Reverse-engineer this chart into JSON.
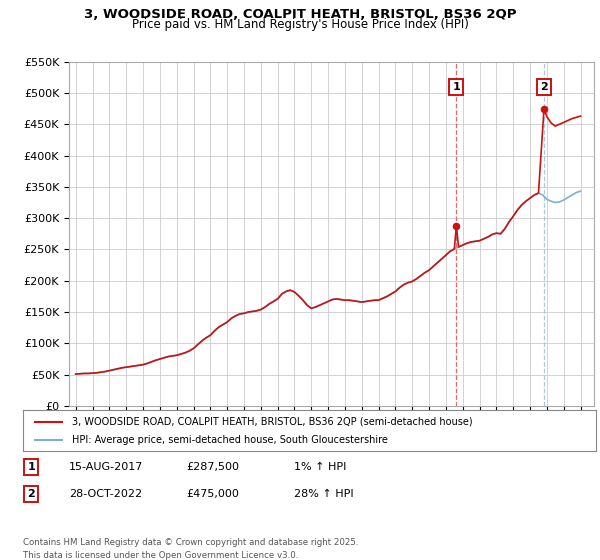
{
  "title_line1": "3, WOODSIDE ROAD, COALPIT HEATH, BRISTOL, BS36 2QP",
  "title_line2": "Price paid vs. HM Land Registry's House Price Index (HPI)",
  "ylim": [
    0,
    550000
  ],
  "yticks": [
    0,
    50000,
    100000,
    150000,
    200000,
    250000,
    300000,
    350000,
    400000,
    450000,
    500000,
    550000
  ],
  "ytick_labels": [
    "£0",
    "£50K",
    "£100K",
    "£150K",
    "£200K",
    "£250K",
    "£300K",
    "£350K",
    "£400K",
    "£450K",
    "£500K",
    "£550K"
  ],
  "xlim_start": 1994.6,
  "xlim_end": 2025.8,
  "xticks": [
    1995,
    1996,
    1997,
    1998,
    1999,
    2000,
    2001,
    2002,
    2003,
    2004,
    2005,
    2006,
    2007,
    2008,
    2009,
    2010,
    2011,
    2012,
    2013,
    2014,
    2015,
    2016,
    2017,
    2018,
    2019,
    2020,
    2021,
    2022,
    2023,
    2024,
    2025
  ],
  "hpi_color": "#7bafd4",
  "price_color": "#cc1111",
  "vline1_color": "#dd4444",
  "vline2_color": "#99bbdd",
  "grid_color": "#cccccc",
  "bg_color": "#ffffff",
  "sale1_x": 2017.62,
  "sale1_y": 287500,
  "sale2_x": 2022.83,
  "sale2_y": 475000,
  "legend_label1": "3, WOODSIDE ROAD, COALPIT HEATH, BRISTOL, BS36 2QP (semi-detached house)",
  "legend_label2": "HPI: Average price, semi-detached house, South Gloucestershire",
  "table_row1": [
    "1",
    "15-AUG-2017",
    "£287,500",
    "1% ↑ HPI"
  ],
  "table_row2": [
    "2",
    "28-OCT-2022",
    "£475,000",
    "28% ↑ HPI"
  ],
  "footer": "Contains HM Land Registry data © Crown copyright and database right 2025.\nThis data is licensed under the Open Government Licence v3.0.",
  "hpi_data": [
    [
      1995.0,
      51000
    ],
    [
      1995.25,
      51500
    ],
    [
      1995.5,
      52000
    ],
    [
      1995.75,
      52000
    ],
    [
      1996.0,
      52500
    ],
    [
      1996.25,
      53000
    ],
    [
      1996.5,
      54000
    ],
    [
      1996.75,
      55000
    ],
    [
      1997.0,
      56500
    ],
    [
      1997.25,
      58000
    ],
    [
      1997.5,
      59500
    ],
    [
      1997.75,
      61000
    ],
    [
      1998.0,
      62000
    ],
    [
      1998.25,
      63000
    ],
    [
      1998.5,
      64000
    ],
    [
      1998.75,
      65000
    ],
    [
      1999.0,
      66000
    ],
    [
      1999.25,
      68000
    ],
    [
      1999.5,
      70500
    ],
    [
      1999.75,
      73000
    ],
    [
      2000.0,
      75000
    ],
    [
      2000.25,
      77000
    ],
    [
      2000.5,
      79000
    ],
    [
      2000.75,
      80000
    ],
    [
      2001.0,
      81000
    ],
    [
      2001.25,
      83000
    ],
    [
      2001.5,
      85000
    ],
    [
      2001.75,
      88000
    ],
    [
      2002.0,
      92000
    ],
    [
      2002.25,
      98000
    ],
    [
      2002.5,
      104000
    ],
    [
      2002.75,
      109000
    ],
    [
      2003.0,
      113000
    ],
    [
      2003.25,
      120000
    ],
    [
      2003.5,
      126000
    ],
    [
      2003.75,
      130000
    ],
    [
      2004.0,
      134000
    ],
    [
      2004.25,
      140000
    ],
    [
      2004.5,
      144000
    ],
    [
      2004.75,
      147000
    ],
    [
      2005.0,
      148000
    ],
    [
      2005.25,
      150000
    ],
    [
      2005.5,
      151000
    ],
    [
      2005.75,
      152000
    ],
    [
      2006.0,
      154000
    ],
    [
      2006.25,
      158000
    ],
    [
      2006.5,
      163000
    ],
    [
      2006.75,
      167000
    ],
    [
      2007.0,
      171000
    ],
    [
      2007.25,
      179000
    ],
    [
      2007.5,
      183000
    ],
    [
      2007.75,
      185000
    ],
    [
      2008.0,
      182000
    ],
    [
      2008.25,
      176000
    ],
    [
      2008.5,
      169000
    ],
    [
      2008.75,
      161000
    ],
    [
      2009.0,
      156000
    ],
    [
      2009.25,
      158000
    ],
    [
      2009.5,
      161000
    ],
    [
      2009.75,
      164000
    ],
    [
      2010.0,
      167000
    ],
    [
      2010.25,
      170000
    ],
    [
      2010.5,
      171000
    ],
    [
      2010.75,
      170000
    ],
    [
      2011.0,
      169000
    ],
    [
      2011.25,
      169000
    ],
    [
      2011.5,
      168000
    ],
    [
      2011.75,
      167000
    ],
    [
      2012.0,
      166000
    ],
    [
      2012.25,
      167000
    ],
    [
      2012.5,
      168000
    ],
    [
      2012.75,
      169000
    ],
    [
      2013.0,
      169000
    ],
    [
      2013.25,
      172000
    ],
    [
      2013.5,
      175000
    ],
    [
      2013.75,
      179000
    ],
    [
      2014.0,
      183000
    ],
    [
      2014.25,
      189000
    ],
    [
      2014.5,
      194000
    ],
    [
      2014.75,
      197000
    ],
    [
      2015.0,
      199000
    ],
    [
      2015.25,
      203000
    ],
    [
      2015.5,
      208000
    ],
    [
      2015.75,
      213000
    ],
    [
      2016.0,
      217000
    ],
    [
      2016.25,
      223000
    ],
    [
      2016.5,
      229000
    ],
    [
      2016.75,
      235000
    ],
    [
      2017.0,
      241000
    ],
    [
      2017.25,
      247000
    ],
    [
      2017.5,
      251000
    ],
    [
      2017.75,
      254000
    ],
    [
      2018.0,
      257000
    ],
    [
      2018.25,
      260000
    ],
    [
      2018.5,
      262000
    ],
    [
      2018.75,
      263000
    ],
    [
      2019.0,
      264000
    ],
    [
      2019.25,
      267000
    ],
    [
      2019.5,
      270000
    ],
    [
      2019.75,
      274000
    ],
    [
      2020.0,
      276000
    ],
    [
      2020.25,
      275000
    ],
    [
      2020.5,
      283000
    ],
    [
      2020.75,
      294000
    ],
    [
      2021.0,
      303000
    ],
    [
      2021.25,
      313000
    ],
    [
      2021.5,
      321000
    ],
    [
      2021.75,
      327000
    ],
    [
      2022.0,
      332000
    ],
    [
      2022.25,
      337000
    ],
    [
      2022.5,
      340000
    ],
    [
      2022.75,
      337000
    ],
    [
      2023.0,
      330000
    ],
    [
      2023.25,
      327000
    ],
    [
      2023.5,
      325000
    ],
    [
      2023.75,
      326000
    ],
    [
      2024.0,
      329000
    ],
    [
      2024.25,
      333000
    ],
    [
      2024.5,
      337000
    ],
    [
      2024.75,
      341000
    ],
    [
      2025.0,
      343000
    ]
  ],
  "price_data": [
    [
      1995.0,
      51000
    ],
    [
      1995.25,
      51500
    ],
    [
      1995.5,
      52000
    ],
    [
      1995.75,
      52000
    ],
    [
      1996.0,
      52500
    ],
    [
      1996.25,
      53000
    ],
    [
      1996.5,
      54000
    ],
    [
      1996.75,
      55000
    ],
    [
      1997.0,
      56500
    ],
    [
      1997.25,
      58000
    ],
    [
      1997.5,
      59500
    ],
    [
      1997.75,
      61000
    ],
    [
      1998.0,
      62000
    ],
    [
      1998.25,
      63000
    ],
    [
      1998.5,
      64000
    ],
    [
      1998.75,
      65000
    ],
    [
      1999.0,
      66000
    ],
    [
      1999.25,
      68000
    ],
    [
      1999.5,
      70500
    ],
    [
      1999.75,
      73000
    ],
    [
      2000.0,
      75000
    ],
    [
      2000.25,
      77000
    ],
    [
      2000.5,
      79000
    ],
    [
      2000.75,
      80000
    ],
    [
      2001.0,
      81000
    ],
    [
      2001.25,
      83000
    ],
    [
      2001.5,
      85000
    ],
    [
      2001.75,
      88000
    ],
    [
      2002.0,
      92000
    ],
    [
      2002.25,
      98000
    ],
    [
      2002.5,
      104000
    ],
    [
      2002.75,
      109000
    ],
    [
      2003.0,
      113000
    ],
    [
      2003.25,
      120000
    ],
    [
      2003.5,
      126000
    ],
    [
      2003.75,
      130000
    ],
    [
      2004.0,
      134000
    ],
    [
      2004.25,
      140000
    ],
    [
      2004.5,
      144000
    ],
    [
      2004.75,
      147000
    ],
    [
      2005.0,
      148000
    ],
    [
      2005.25,
      150000
    ],
    [
      2005.5,
      151000
    ],
    [
      2005.75,
      152000
    ],
    [
      2006.0,
      154000
    ],
    [
      2006.25,
      158000
    ],
    [
      2006.5,
      163000
    ],
    [
      2006.75,
      167000
    ],
    [
      2007.0,
      171000
    ],
    [
      2007.25,
      179000
    ],
    [
      2007.5,
      183000
    ],
    [
      2007.75,
      185000
    ],
    [
      2008.0,
      182000
    ],
    [
      2008.25,
      176000
    ],
    [
      2008.5,
      169000
    ],
    [
      2008.75,
      161000
    ],
    [
      2009.0,
      156000
    ],
    [
      2009.25,
      158000
    ],
    [
      2009.5,
      161000
    ],
    [
      2009.75,
      164000
    ],
    [
      2010.0,
      167000
    ],
    [
      2010.25,
      170000
    ],
    [
      2010.5,
      171000
    ],
    [
      2010.75,
      170000
    ],
    [
      2011.0,
      169000
    ],
    [
      2011.25,
      169000
    ],
    [
      2011.5,
      168000
    ],
    [
      2011.75,
      167000
    ],
    [
      2012.0,
      166000
    ],
    [
      2012.25,
      167000
    ],
    [
      2012.5,
      168000
    ],
    [
      2012.75,
      169000
    ],
    [
      2013.0,
      169000
    ],
    [
      2013.25,
      172000
    ],
    [
      2013.5,
      175000
    ],
    [
      2013.75,
      179000
    ],
    [
      2014.0,
      183000
    ],
    [
      2014.25,
      189000
    ],
    [
      2014.5,
      194000
    ],
    [
      2014.75,
      197000
    ],
    [
      2015.0,
      199000
    ],
    [
      2015.25,
      203000
    ],
    [
      2015.5,
      208000
    ],
    [
      2015.75,
      213000
    ],
    [
      2016.0,
      217000
    ],
    [
      2016.25,
      223000
    ],
    [
      2016.5,
      229000
    ],
    [
      2016.75,
      235000
    ],
    [
      2017.0,
      241000
    ],
    [
      2017.25,
      247000
    ],
    [
      2017.5,
      251000
    ],
    [
      2017.62,
      287500
    ],
    [
      2017.75,
      254000
    ],
    [
      2018.0,
      257000
    ],
    [
      2018.25,
      260000
    ],
    [
      2018.5,
      262000
    ],
    [
      2018.75,
      263000
    ],
    [
      2019.0,
      264000
    ],
    [
      2019.25,
      267000
    ],
    [
      2019.5,
      270000
    ],
    [
      2019.75,
      274000
    ],
    [
      2020.0,
      276000
    ],
    [
      2020.25,
      275000
    ],
    [
      2020.5,
      283000
    ],
    [
      2020.75,
      294000
    ],
    [
      2021.0,
      303000
    ],
    [
      2021.25,
      313000
    ],
    [
      2021.5,
      321000
    ],
    [
      2021.75,
      327000
    ],
    [
      2022.0,
      332000
    ],
    [
      2022.25,
      337000
    ],
    [
      2022.5,
      340000
    ],
    [
      2022.83,
      475000
    ],
    [
      2023.0,
      462000
    ],
    [
      2023.25,
      452000
    ],
    [
      2023.5,
      447000
    ],
    [
      2023.75,
      450000
    ],
    [
      2024.0,
      453000
    ],
    [
      2024.25,
      456000
    ],
    [
      2024.5,
      459000
    ],
    [
      2024.75,
      461000
    ],
    [
      2025.0,
      463000
    ]
  ]
}
